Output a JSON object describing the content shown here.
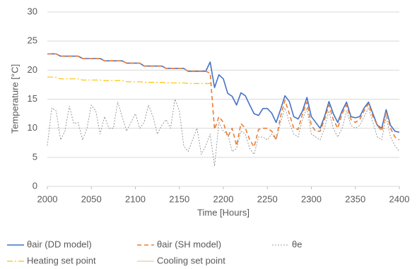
{
  "chart_data": {
    "type": "line",
    "x_label": "Time [Hours]",
    "y_label": "Temperature [°C]",
    "xlim": [
      2000,
      2400
    ],
    "xticks": [
      2000,
      2050,
      2100,
      2150,
      2200,
      2250,
      2300,
      2350,
      2400
    ],
    "ylim": [
      0,
      30
    ],
    "yticks": [
      0,
      5,
      10,
      15,
      20,
      25,
      30
    ],
    "grid": true,
    "legend": "bottom",
    "x": [
      2000,
      2005,
      2010,
      2015,
      2020,
      2025,
      2030,
      2035,
      2040,
      2045,
      2050,
      2055,
      2060,
      2065,
      2070,
      2075,
      2080,
      2085,
      2090,
      2095,
      2100,
      2105,
      2110,
      2115,
      2120,
      2125,
      2130,
      2135,
      2140,
      2145,
      2150,
      2155,
      2160,
      2165,
      2170,
      2175,
      2180,
      2185,
      2190,
      2195,
      2200,
      2205,
      2210,
      2215,
      2220,
      2225,
      2230,
      2235,
      2240,
      2245,
      2250,
      2255,
      2260,
      2265,
      2270,
      2275,
      2280,
      2285,
      2290,
      2295,
      2300,
      2305,
      2310,
      2315,
      2320,
      2325,
      2330,
      2335,
      2340,
      2345,
      2350,
      2355,
      2360,
      2365,
      2370,
      2375,
      2380,
      2385,
      2390,
      2395,
      2400
    ],
    "series": [
      {
        "name": "θair (DD model)",
        "color": "#4472c4",
        "width": 1.6,
        "dash": "none",
        "values": [
          22.8,
          22.8,
          22.8,
          22.4,
          22.4,
          22.4,
          22.4,
          22.4,
          22.0,
          22.0,
          22.0,
          22.0,
          22.0,
          21.6,
          21.6,
          21.6,
          21.6,
          21.6,
          21.2,
          21.2,
          21.2,
          21.2,
          20.7,
          20.7,
          20.7,
          20.7,
          20.7,
          20.3,
          20.3,
          20.3,
          20.3,
          20.3,
          19.8,
          19.8,
          19.8,
          19.8,
          19.8,
          21.4,
          17,
          19.2,
          18.5,
          16,
          15.5,
          14,
          16.1,
          15.6,
          14,
          12.5,
          12.2,
          13.4,
          13.4,
          12.6,
          11,
          13.2,
          15.6,
          14.6,
          12,
          11.6,
          13,
          15.3,
          12,
          11,
          10,
          12,
          14.6,
          12.5,
          11,
          13,
          14.5,
          12,
          11.8,
          12,
          13.5,
          14.5,
          12.5,
          10.5,
          10,
          13.2,
          10.5,
          9.5,
          9.3
        ]
      },
      {
        "name": "θair (SH model)",
        "color": "#ed7d31",
        "width": 1.6,
        "dash": "6,4",
        "values": [
          22.8,
          22.8,
          22.8,
          22.4,
          22.4,
          22.4,
          22.4,
          22.4,
          22.0,
          22.0,
          22.0,
          22.0,
          22.0,
          21.6,
          21.6,
          21.6,
          21.6,
          21.6,
          21.2,
          21.2,
          21.2,
          21.2,
          20.7,
          20.7,
          20.7,
          20.7,
          20.7,
          20.3,
          20.3,
          20.3,
          20.3,
          20.3,
          19.8,
          19.8,
          19.8,
          19.8,
          19.8,
          19.5,
          9.8,
          12,
          11,
          8.5,
          10,
          7,
          10.8,
          10,
          8,
          6.8,
          9.8,
          10,
          10,
          9.5,
          8,
          12,
          14.8,
          12.5,
          10,
          9.8,
          12.5,
          14.5,
          10.5,
          9.5,
          9.5,
          11.5,
          14,
          11.5,
          10,
          12.5,
          14,
          11.5,
          11,
          11.5,
          13,
          14.2,
          12,
          10.5,
          9.5,
          12.8,
          10,
          8.5,
          8
        ]
      },
      {
        "name": "θe",
        "color": "#808080",
        "width": 0.8,
        "dash": "2,2",
        "values": [
          7,
          13.5,
          13,
          8,
          9.5,
          13.8,
          10.8,
          11,
          8,
          10,
          14,
          13,
          9,
          12,
          10,
          10,
          14.5,
          12,
          9.5,
          11,
          12.5,
          10,
          11,
          14,
          12,
          9,
          10.5,
          11.5,
          10,
          15,
          13,
          7,
          6,
          8,
          10,
          5.5,
          7,
          9,
          3.5,
          11,
          9.5,
          9,
          6,
          6.5,
          9.5,
          9,
          6.5,
          5.5,
          8.5,
          8.5,
          8,
          9,
          8,
          11,
          13.5,
          11,
          9,
          8.5,
          11.5,
          13.5,
          9,
          8.5,
          8,
          10,
          13,
          10,
          8.5,
          10,
          13,
          10.5,
          10,
          10.5,
          12,
          13.5,
          11,
          8.5,
          8,
          12,
          8.5,
          7,
          6
        ]
      },
      {
        "name": "Heating set point",
        "color": "#ffc000",
        "width": 1.2,
        "dash": "8,3,2,3",
        "values": [
          18.8,
          18.8,
          18.8,
          18.5,
          18.5,
          18.5,
          18.5,
          18.5,
          18.3,
          18.3,
          18.3,
          18.3,
          18.3,
          18.2,
          18.2,
          18.2,
          18.2,
          18.2,
          18.0,
          18.0,
          18.0,
          18.0,
          17.9,
          17.9,
          17.9,
          17.9,
          17.9,
          17.8,
          17.8,
          17.8,
          17.8,
          17.8,
          17.7,
          17.7,
          17.7,
          17.7,
          17.7,
          17.7,
          null,
          null,
          null,
          null,
          null,
          null,
          null,
          null,
          null,
          null,
          null,
          null,
          null,
          null,
          null,
          null,
          null,
          null,
          null,
          null,
          null,
          null,
          null,
          null,
          null,
          null,
          null,
          null,
          null,
          null,
          null,
          null,
          null,
          null,
          null,
          null,
          null,
          null,
          null,
          null,
          null,
          null,
          null
        ]
      },
      {
        "name": "Cooling set point",
        "color": "#e6c9a8",
        "width": 1.2,
        "dash": "none",
        "values": [
          22.8,
          22.8,
          22.8,
          22.4,
          22.4,
          22.4,
          22.4,
          22.4,
          22.0,
          22.0,
          22.0,
          22.0,
          22.0,
          21.6,
          21.6,
          21.6,
          21.6,
          21.6,
          21.2,
          21.2,
          21.2,
          21.2,
          20.7,
          20.7,
          20.7,
          20.7,
          20.7,
          20.3,
          20.3,
          20.3,
          20.3,
          20.3,
          19.8,
          19.8,
          19.8,
          19.8,
          19.8,
          null,
          null,
          null,
          null,
          null,
          null,
          null,
          null,
          null,
          null,
          null,
          null,
          null,
          null,
          null,
          null,
          null,
          null,
          null,
          null,
          null,
          null,
          null,
          null,
          null,
          null,
          null,
          null,
          null,
          null,
          null,
          null,
          null,
          null,
          null,
          null,
          null,
          null,
          null,
          null,
          null,
          null,
          null,
          null
        ]
      }
    ]
  }
}
